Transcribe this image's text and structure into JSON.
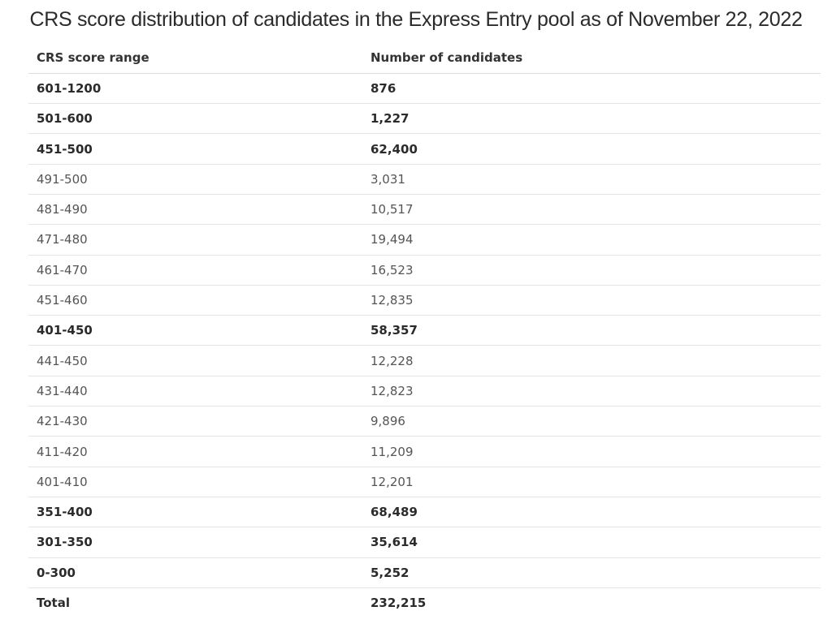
{
  "title": "CRS score distribution of candidates in the Express Entry pool as of November 22, 2022",
  "table": {
    "headers": [
      "CRS score range",
      "Number of candidates"
    ],
    "rows": [
      {
        "range": "601-1200",
        "count": "876",
        "bold": true
      },
      {
        "range": "501-600",
        "count": "1,227",
        "bold": true
      },
      {
        "range": "451-500",
        "count": "62,400",
        "bold": true
      },
      {
        "range": "491-500",
        "count": "3,031",
        "bold": false
      },
      {
        "range": "481-490",
        "count": "10,517",
        "bold": false
      },
      {
        "range": "471-480",
        "count": "19,494",
        "bold": false
      },
      {
        "range": "461-470",
        "count": "16,523",
        "bold": false
      },
      {
        "range": "451-460",
        "count": "12,835",
        "bold": false
      },
      {
        "range": "401-450",
        "count": "58,357",
        "bold": true
      },
      {
        "range": "441-450",
        "count": "12,228",
        "bold": false
      },
      {
        "range": "431-440",
        "count": "12,823",
        "bold": false
      },
      {
        "range": "421-430",
        "count": "9,896",
        "bold": false
      },
      {
        "range": "411-420",
        "count": "11,209",
        "bold": false
      },
      {
        "range": "401-410",
        "count": "12,201",
        "bold": false
      },
      {
        "range": "351-400",
        "count": "68,489",
        "bold": true
      },
      {
        "range": "301-350",
        "count": "35,614",
        "bold": true
      },
      {
        "range": "0-300",
        "count": "5,252",
        "bold": true
      },
      {
        "range": "Total",
        "count": "232,215",
        "bold": true
      }
    ]
  }
}
